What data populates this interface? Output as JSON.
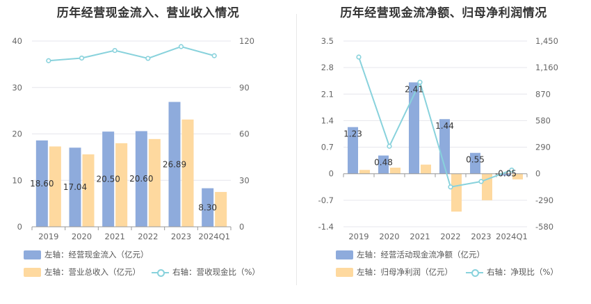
{
  "colors": {
    "bar1": "#8eabdc",
    "bar2": "#fed99f",
    "line": "#88d2dc",
    "grid": "#e6e6ec",
    "axisText": "#666666"
  },
  "left": {
    "title": "历年经营现金流入、营业收入情况",
    "legend": {
      "bar1": "左轴：经营现金流入（亿元）",
      "bar2": "左轴：营业总收入（亿元）",
      "line": "右轴：营收现金比（%）"
    }
  },
  "right": {
    "title": "历年经营现金流净额、归母净利润情况",
    "legend": {
      "bar1": "左轴：经营活动现金流净额（亿元）",
      "bar2": "左轴：归母净利润（亿元）",
      "line": "右轴：净现比（%）"
    }
  },
  "chart_data": [
    {
      "type": "bar",
      "title": "历年经营现金流入、营业收入情况",
      "categories": [
        "2019",
        "2020",
        "2021",
        "2022",
        "2023",
        "2024Q1"
      ],
      "left_ticks": [
        "0",
        "10",
        "20",
        "30",
        "40"
      ],
      "right_ticks": [
        "0",
        "30",
        "60",
        "90",
        "120"
      ],
      "ylim": [
        0,
        40
      ],
      "y2lim": [
        0,
        120
      ],
      "series": [
        {
          "name": "左轴：经营现金流入（亿元）",
          "kind": "bar",
          "axis": "left",
          "values": [
            18.6,
            17.04,
            20.5,
            20.6,
            26.89,
            8.3
          ],
          "labels": [
            "18.60",
            "17.04",
            "20.50",
            "20.60",
            "26.89",
            "8.30"
          ]
        },
        {
          "name": "左轴：营业总收入（亿元）",
          "kind": "bar",
          "axis": "left",
          "values": [
            17.3,
            15.6,
            18.0,
            18.9,
            23.1,
            7.5
          ]
        },
        {
          "name": "右轴：营收现金比（%）",
          "kind": "line",
          "axis": "right",
          "values": [
            107.3,
            109.0,
            113.9,
            108.8,
            116.4,
            110.5
          ]
        }
      ]
    },
    {
      "type": "bar",
      "title": "历年经营现金流净额、归母净利润情况",
      "categories": [
        "2019",
        "2020",
        "2021",
        "2022",
        "2023",
        "2024Q1"
      ],
      "left_ticks": [
        "-1.4",
        "-0.7",
        "0",
        "0.7",
        "1.4",
        "2.1",
        "2.8",
        "3.5"
      ],
      "right_ticks": [
        "-580",
        "-290",
        "0",
        "290",
        "580",
        "870",
        "1,160",
        "1,450"
      ],
      "ylim": [
        -1.4,
        3.5
      ],
      "y2lim": [
        -580,
        1450
      ],
      "series": [
        {
          "name": "左轴：经营活动现金流净额（亿元）",
          "kind": "bar",
          "axis": "left",
          "values": [
            1.23,
            0.48,
            2.41,
            1.44,
            0.55,
            -0.05
          ],
          "labels": [
            "1.23",
            "0.48",
            "2.41",
            "1.44",
            "0.55",
            "-0.05"
          ]
        },
        {
          "name": "左轴：归母净利润（亿元）",
          "kind": "bar",
          "axis": "left",
          "values": [
            0.1,
            0.16,
            0.24,
            -1.0,
            -0.7,
            -0.15
          ]
        },
        {
          "name": "右轴：净现比（%）",
          "kind": "line",
          "axis": "right",
          "values": [
            1275,
            300,
            1000,
            -145,
            -85,
            40
          ]
        }
      ]
    }
  ]
}
